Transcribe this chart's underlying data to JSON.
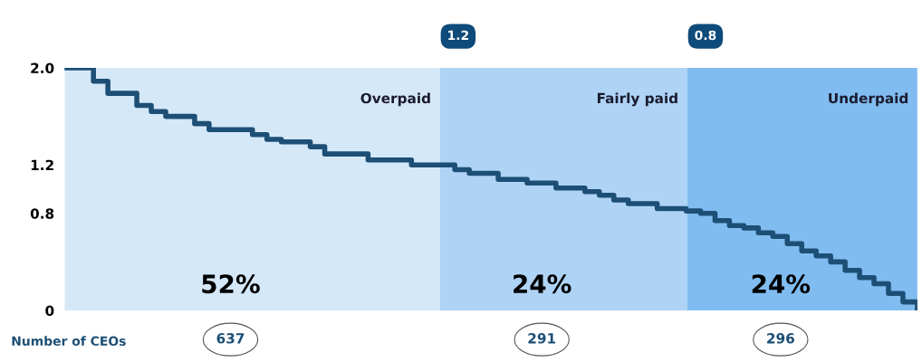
{
  "chart_data": {
    "type": "step",
    "categories": [
      null,
      null,
      null,
      null,
      null,
      null,
      null,
      null,
      null,
      null,
      null,
      null,
      null,
      null,
      null,
      null,
      null,
      null,
      null,
      null,
      null,
      null,
      null,
      null,
      null,
      null,
      null,
      null,
      null,
      null,
      null,
      null,
      null,
      null,
      null,
      null,
      null,
      null,
      null,
      null,
      null,
      null,
      null,
      null,
      null,
      null,
      null,
      null,
      null,
      null,
      null,
      null,
      null,
      null,
      null,
      null,
      null,
      null,
      null,
      null
    ],
    "series": [
      {
        "color": "#1d4f76",
        "values": [
          2.0,
          2.0,
          1.89,
          1.79,
          1.79,
          1.69,
          1.64,
          1.6,
          1.6,
          1.54,
          1.49,
          1.49,
          1.49,
          1.45,
          1.41,
          1.39,
          1.39,
          1.35,
          1.29,
          1.29,
          1.29,
          1.24,
          1.24,
          1.24,
          1.2,
          1.2,
          1.2,
          1.16,
          1.13,
          1.13,
          1.08,
          1.08,
          1.05,
          1.05,
          1.01,
          1.01,
          0.98,
          0.95,
          0.91,
          0.88,
          0.88,
          0.84,
          0.84,
          0.82,
          0.8,
          0.74,
          0.7,
          0.68,
          0.64,
          0.61,
          0.55,
          0.49,
          0.45,
          0.4,
          0.33,
          0.27,
          0.22,
          0.14,
          0.07,
          0.0
        ]
      }
    ],
    "ylim": [
      0,
      2.0
    ],
    "yticks": [
      {
        "value": 2.0,
        "label": "2.0"
      },
      1.2,
      0.8,
      0
    ],
    "annotations": [
      "1.2",
      "0.8",
      "Overpaid",
      "Fairly paid",
      "Underpaid",
      "52%",
      "24%",
      "24%",
      "Number of CEOs",
      "637",
      "291",
      "296"
    ],
    "grid": false
  }
}
